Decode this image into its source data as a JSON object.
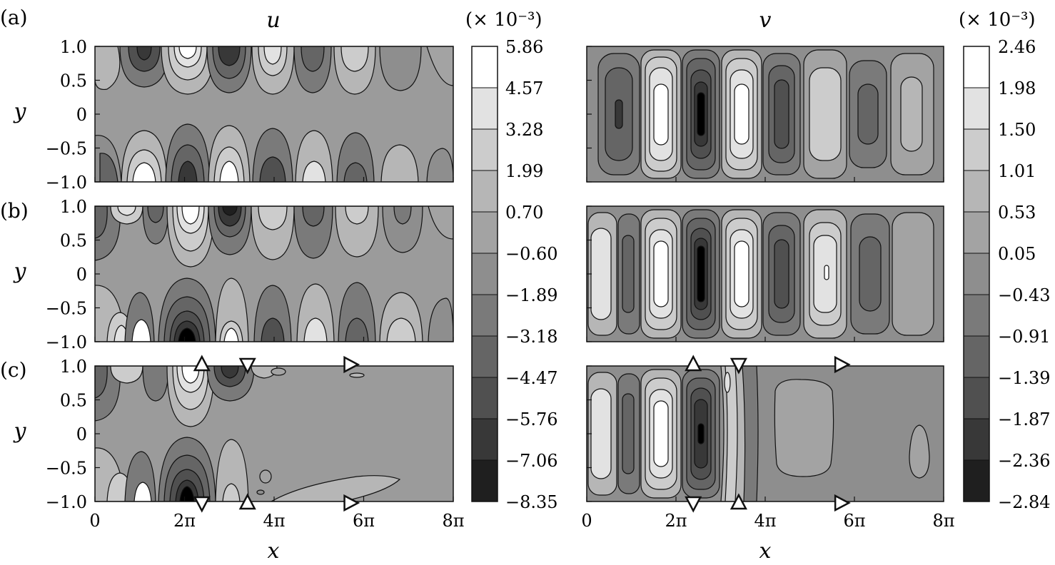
{
  "chart_data": {
    "type": "contour",
    "panel_labels": [
      "(a)",
      "(b)",
      "(c)"
    ],
    "columns": [
      {
        "variable": "u",
        "colorbar": {
          "scale_label": "(× 10⁻³)",
          "levels": [
            "5.86",
            "4.57",
            "3.28",
            "1.99",
            "0.70",
            "−0.60",
            "−1.89",
            "−3.18",
            "−4.47",
            "−5.76",
            "−7.06",
            "−8.35"
          ],
          "colors": [
            "#ffffff",
            "#e2e2e2",
            "#cccccc",
            "#b6b6b6",
            "#a3a3a3",
            "#8e8e8e",
            "#7a7a7a",
            "#656565",
            "#505050",
            "#383838",
            "#1f1f1f",
            "#000000"
          ]
        }
      },
      {
        "variable": "v",
        "colorbar": {
          "scale_label": "(× 10⁻³)",
          "levels": [
            "2.46",
            "1.98",
            "1.50",
            "1.01",
            "0.53",
            "0.05",
            "−0.43",
            "−0.91",
            "−1.39",
            "−1.87",
            "−2.36",
            "−2.84"
          ],
          "colors": [
            "#ffffff",
            "#e2e2e2",
            "#cccccc",
            "#b6b6b6",
            "#a3a3a3",
            "#8e8e8e",
            "#7a7a7a",
            "#656565",
            "#505050",
            "#383838",
            "#1f1f1f",
            "#000000"
          ]
        }
      }
    ],
    "x_axis": {
      "label": "x",
      "ticks": [
        "0",
        "2π",
        "4π",
        "6π",
        "8π"
      ],
      "range": [
        0,
        25.13
      ]
    },
    "y_axis": {
      "label": "y",
      "ticks": [
        "1.0",
        "0.5",
        "0",
        "−0.5",
        "−1.0"
      ],
      "range": [
        -1,
        1
      ]
    },
    "markers_panel_c": [
      {
        "symbol": "up-triangle",
        "x": 7.5,
        "edge": "top"
      },
      {
        "symbol": "down-triangle",
        "x": 10.7,
        "edge": "top"
      },
      {
        "symbol": "right-triangle",
        "x": 17.9,
        "edge": "top"
      },
      {
        "symbol": "down-triangle",
        "x": 7.5,
        "edge": "bottom"
      },
      {
        "symbol": "up-triangle",
        "x": 10.7,
        "edge": "bottom"
      },
      {
        "symbol": "right-triangle",
        "x": 17.9,
        "edge": "bottom"
      }
    ]
  }
}
